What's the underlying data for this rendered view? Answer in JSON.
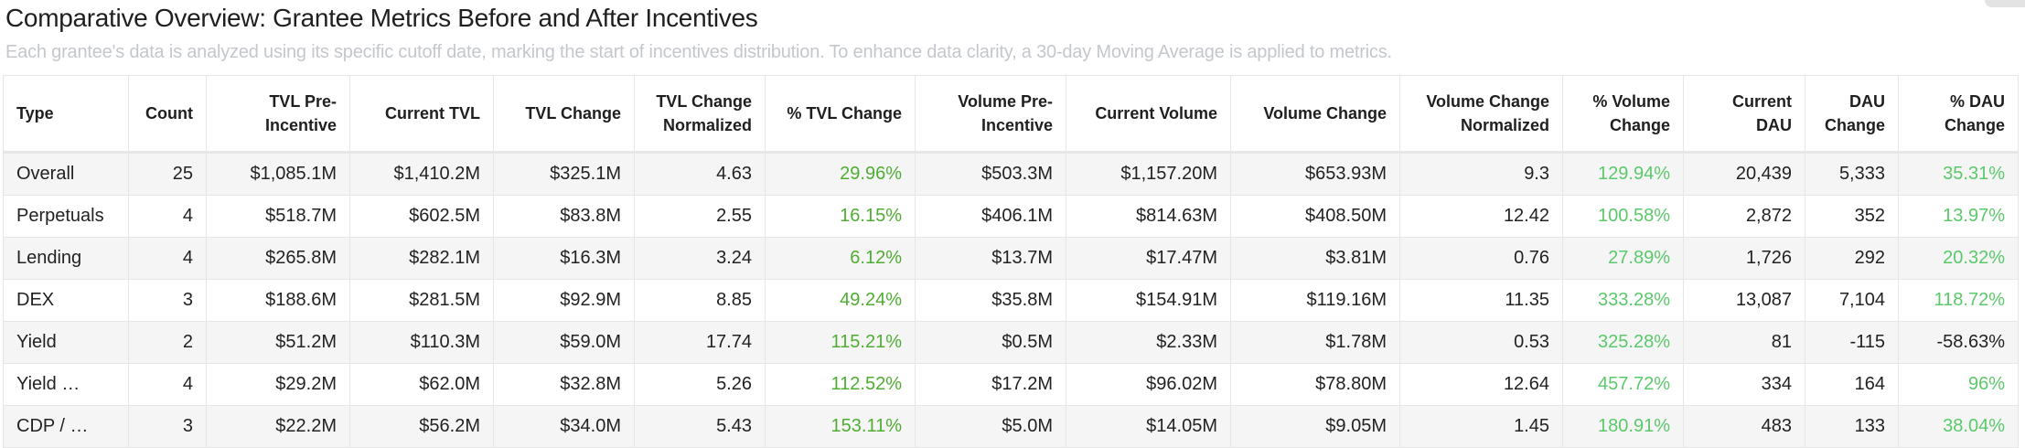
{
  "title": "Comparative Overview: Grantee Metrics Before and After Incentives",
  "subtitle": "Each grantee's data is analyzed using its specific cutoff date, marking the start of incentives distribution. To enhance data clarity, a 30-day Moving Average is applied to metrics.",
  "colors": {
    "positive_tvl": "#4fae32",
    "positive_other": "#5bc96a",
    "stripe": "#f5f5f5",
    "border": "#e6e6e6"
  },
  "table": {
    "columns": [
      "Type",
      "Count",
      "TVL Pre-Incentive",
      "Current TVL",
      "TVL Change",
      "TVL Change Normalized",
      "% TVL Change",
      "Volume Pre-Incentive",
      "Current Volume",
      "Volume Change",
      "Volume Change Normalized",
      "% Volume Change",
      "Current DAU",
      "DAU Change",
      "% DAU Change"
    ],
    "rows": [
      [
        "Overall",
        "25",
        "$1,085.1M",
        "$1,410.2M",
        "$325.1M",
        "4.63",
        "29.96%",
        "$503.3M",
        "$1,157.20M",
        "$653.93M",
        "9.3",
        "129.94%",
        "20,439",
        "5,333",
        "35.31%"
      ],
      [
        "Perpetuals",
        "4",
        "$518.7M",
        "$602.5M",
        "$83.8M",
        "2.55",
        "16.15%",
        "$406.1M",
        "$814.63M",
        "$408.50M",
        "12.42",
        "100.58%",
        "2,872",
        "352",
        "13.97%"
      ],
      [
        "Lending",
        "4",
        "$265.8M",
        "$282.1M",
        "$16.3M",
        "3.24",
        "6.12%",
        "$13.7M",
        "$17.47M",
        "$3.81M",
        "0.76",
        "27.89%",
        "1,726",
        "292",
        "20.32%"
      ],
      [
        "DEX",
        "3",
        "$188.6M",
        "$281.5M",
        "$92.9M",
        "8.85",
        "49.24%",
        "$35.8M",
        "$154.91M",
        "$119.16M",
        "11.35",
        "333.28%",
        "13,087",
        "7,104",
        "118.72%"
      ],
      [
        "Yield",
        "2",
        "$51.2M",
        "$110.3M",
        "$59.0M",
        "17.74",
        "115.21%",
        "$0.5M",
        "$2.33M",
        "$1.78M",
        "0.53",
        "325.28%",
        "81",
        "-115",
        "-58.63%"
      ],
      [
        "Yield …",
        "4",
        "$29.2M",
        "$62.0M",
        "$32.8M",
        "5.26",
        "112.52%",
        "$17.2M",
        "$96.02M",
        "$78.80M",
        "12.64",
        "457.72%",
        "334",
        "164",
        "96%"
      ],
      [
        "CDP / …",
        "3",
        "$22.2M",
        "$56.2M",
        "$34.0M",
        "5.43",
        "153.11%",
        "$5.0M",
        "$14.05M",
        "$9.05M",
        "1.45",
        "180.91%",
        "483",
        "133",
        "38.04%"
      ]
    ]
  }
}
